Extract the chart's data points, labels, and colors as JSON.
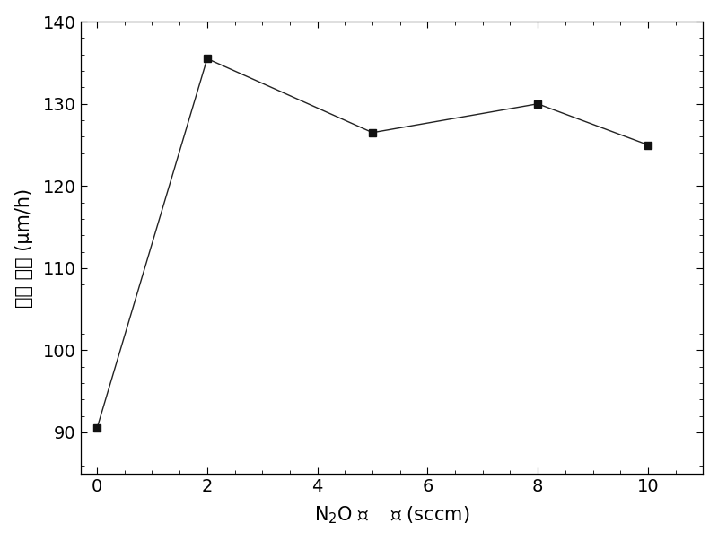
{
  "x": [
    0,
    2,
    5,
    8,
    10
  ],
  "y": [
    90.5,
    135.5,
    126.5,
    130.0,
    125.0
  ],
  "xlim": [
    -0.3,
    11
  ],
  "ylim": [
    85,
    140
  ],
  "xticks": [
    0,
    2,
    4,
    6,
    8,
    10
  ],
  "yticks": [
    90,
    100,
    110,
    120,
    130,
    140
  ],
  "xlabel_parts": [
    "N",
    "2",
    "O 流    量 (sccm)"
  ],
  "ylabel_cn": "生长 速率",
  "ylabel_unit": " (μm/h)",
  "line_color": "#222222",
  "marker": "s",
  "marker_color": "#111111",
  "marker_size": 6,
  "linewidth": 1.0,
  "bg_color": "#ffffff",
  "tick_fontsize": 14,
  "label_fontsize": 15
}
